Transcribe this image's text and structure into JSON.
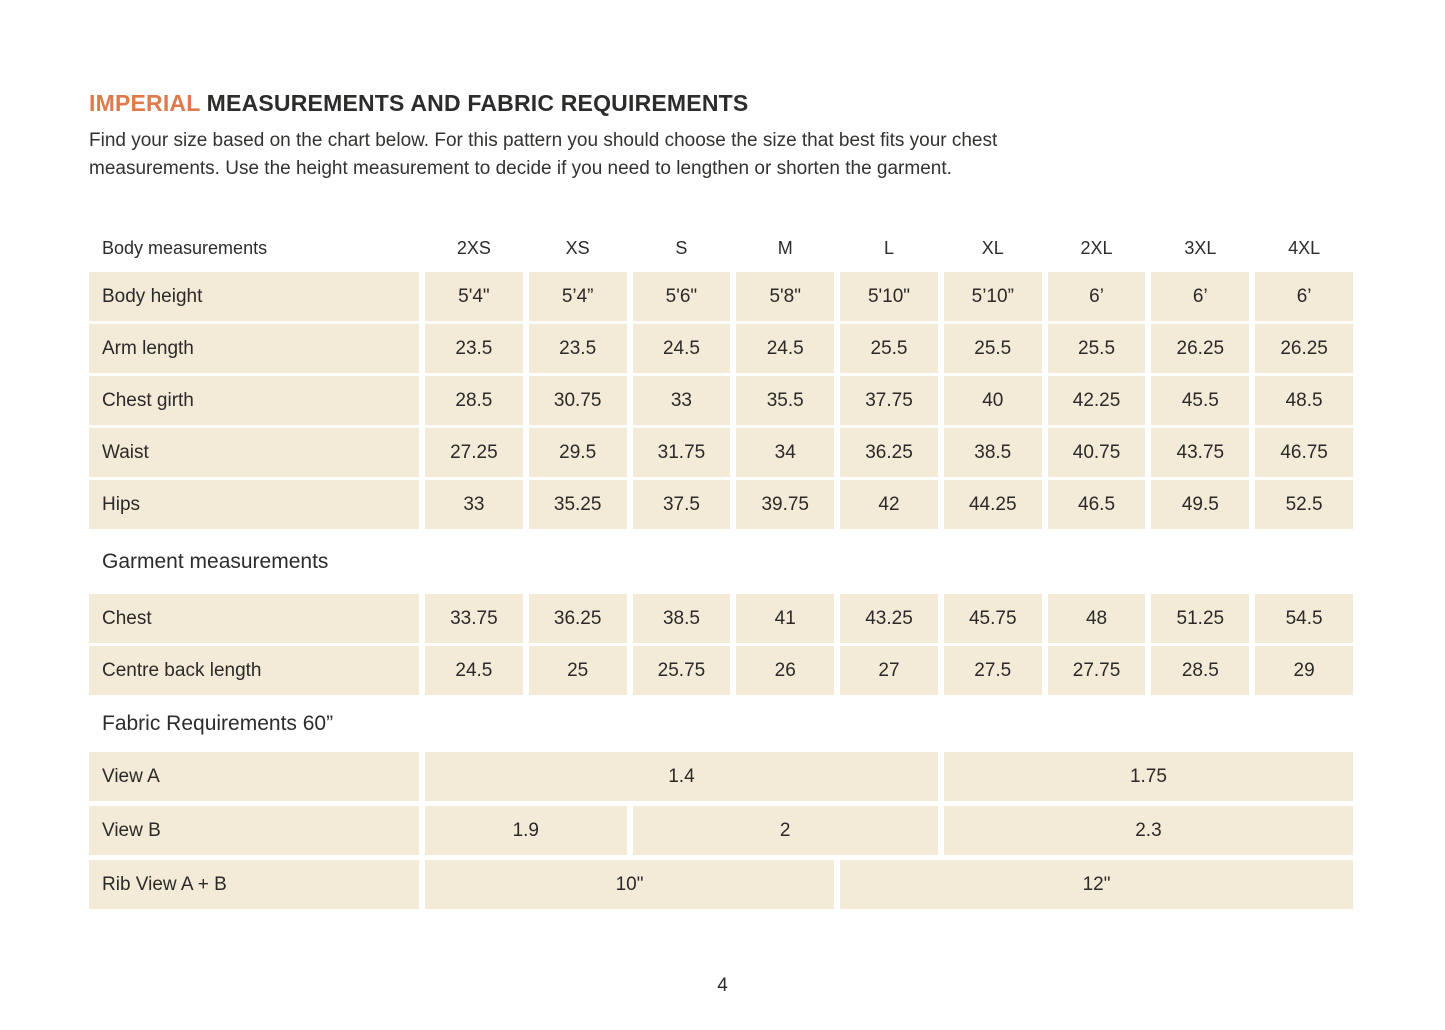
{
  "page": {
    "title_highlight": "IMPERIAL",
    "title_rest": "MEASUREMENTS AND FABRIC REQUIREMENTS",
    "intro_line1": "Find your size based on the chart below. For this pattern you should choose the size that best fits your chest",
    "intro_line2": "measurements. Use the height measurement to decide if you need to lengthen or shorten the garment.",
    "page_number": "4"
  },
  "colors": {
    "accent_orange": "#df7a4c",
    "cell_beige": "#f3ead7",
    "text_dark": "#2d2c2a"
  },
  "table": {
    "header_label": "Body measurements",
    "sizes": [
      "2XS",
      "XS",
      "S",
      "M",
      "L",
      "XL",
      "2XL",
      "3XL",
      "4XL"
    ],
    "body_rows": [
      {
        "label": "Body height",
        "values": [
          "5'4\"",
          "5’4”",
          "5'6\"",
          "5'8\"",
          "5'10\"",
          "5’10”",
          "6’",
          "6’",
          "6’"
        ]
      },
      {
        "label": "Arm length",
        "values": [
          "23.5",
          "23.5",
          "24.5",
          "24.5",
          "25.5",
          "25.5",
          "25.5",
          "26.25",
          "26.25"
        ]
      },
      {
        "label": "Chest girth",
        "values": [
          "28.5",
          "30.75",
          "33",
          "35.5",
          "37.75",
          "40",
          "42.25",
          "45.5",
          "48.5"
        ]
      },
      {
        "label": "Waist",
        "values": [
          "27.25",
          "29.5",
          "31.75",
          "34",
          "36.25",
          "38.5",
          "40.75",
          "43.75",
          "46.75"
        ]
      },
      {
        "label": "Hips",
        "values": [
          "33",
          "35.25",
          "37.5",
          "39.75",
          "42",
          "44.25",
          "46.5",
          "49.5",
          "52.5"
        ]
      }
    ],
    "garment_section_title": "Garment measurements",
    "garment_rows": [
      {
        "label": "Chest",
        "values": [
          "33.75",
          "36.25",
          "38.5",
          "41",
          "43.25",
          "45.75",
          "48",
          "51.25",
          "54.5"
        ]
      },
      {
        "label": "Centre back length",
        "values": [
          "24.5",
          "25",
          "25.75",
          "26",
          "27",
          "27.5",
          "27.75",
          "28.5",
          "29"
        ]
      }
    ],
    "fabric_section_title": "Fabric Requirements 60”",
    "fabric_rows": [
      {
        "label": "View A",
        "cells": [
          {
            "value": "1.4",
            "span": 5
          },
          {
            "value": "1.75",
            "span": 4
          }
        ]
      },
      {
        "label": "View B",
        "cells": [
          {
            "value": "1.9",
            "span": 2
          },
          {
            "value": "2",
            "span": 3
          },
          {
            "value": "2.3",
            "span": 4
          }
        ]
      },
      {
        "label": "Rib View A + B",
        "cells": [
          {
            "value": "10\"",
            "span": 4
          },
          {
            "value": "12\"",
            "span": 5
          }
        ]
      }
    ]
  }
}
